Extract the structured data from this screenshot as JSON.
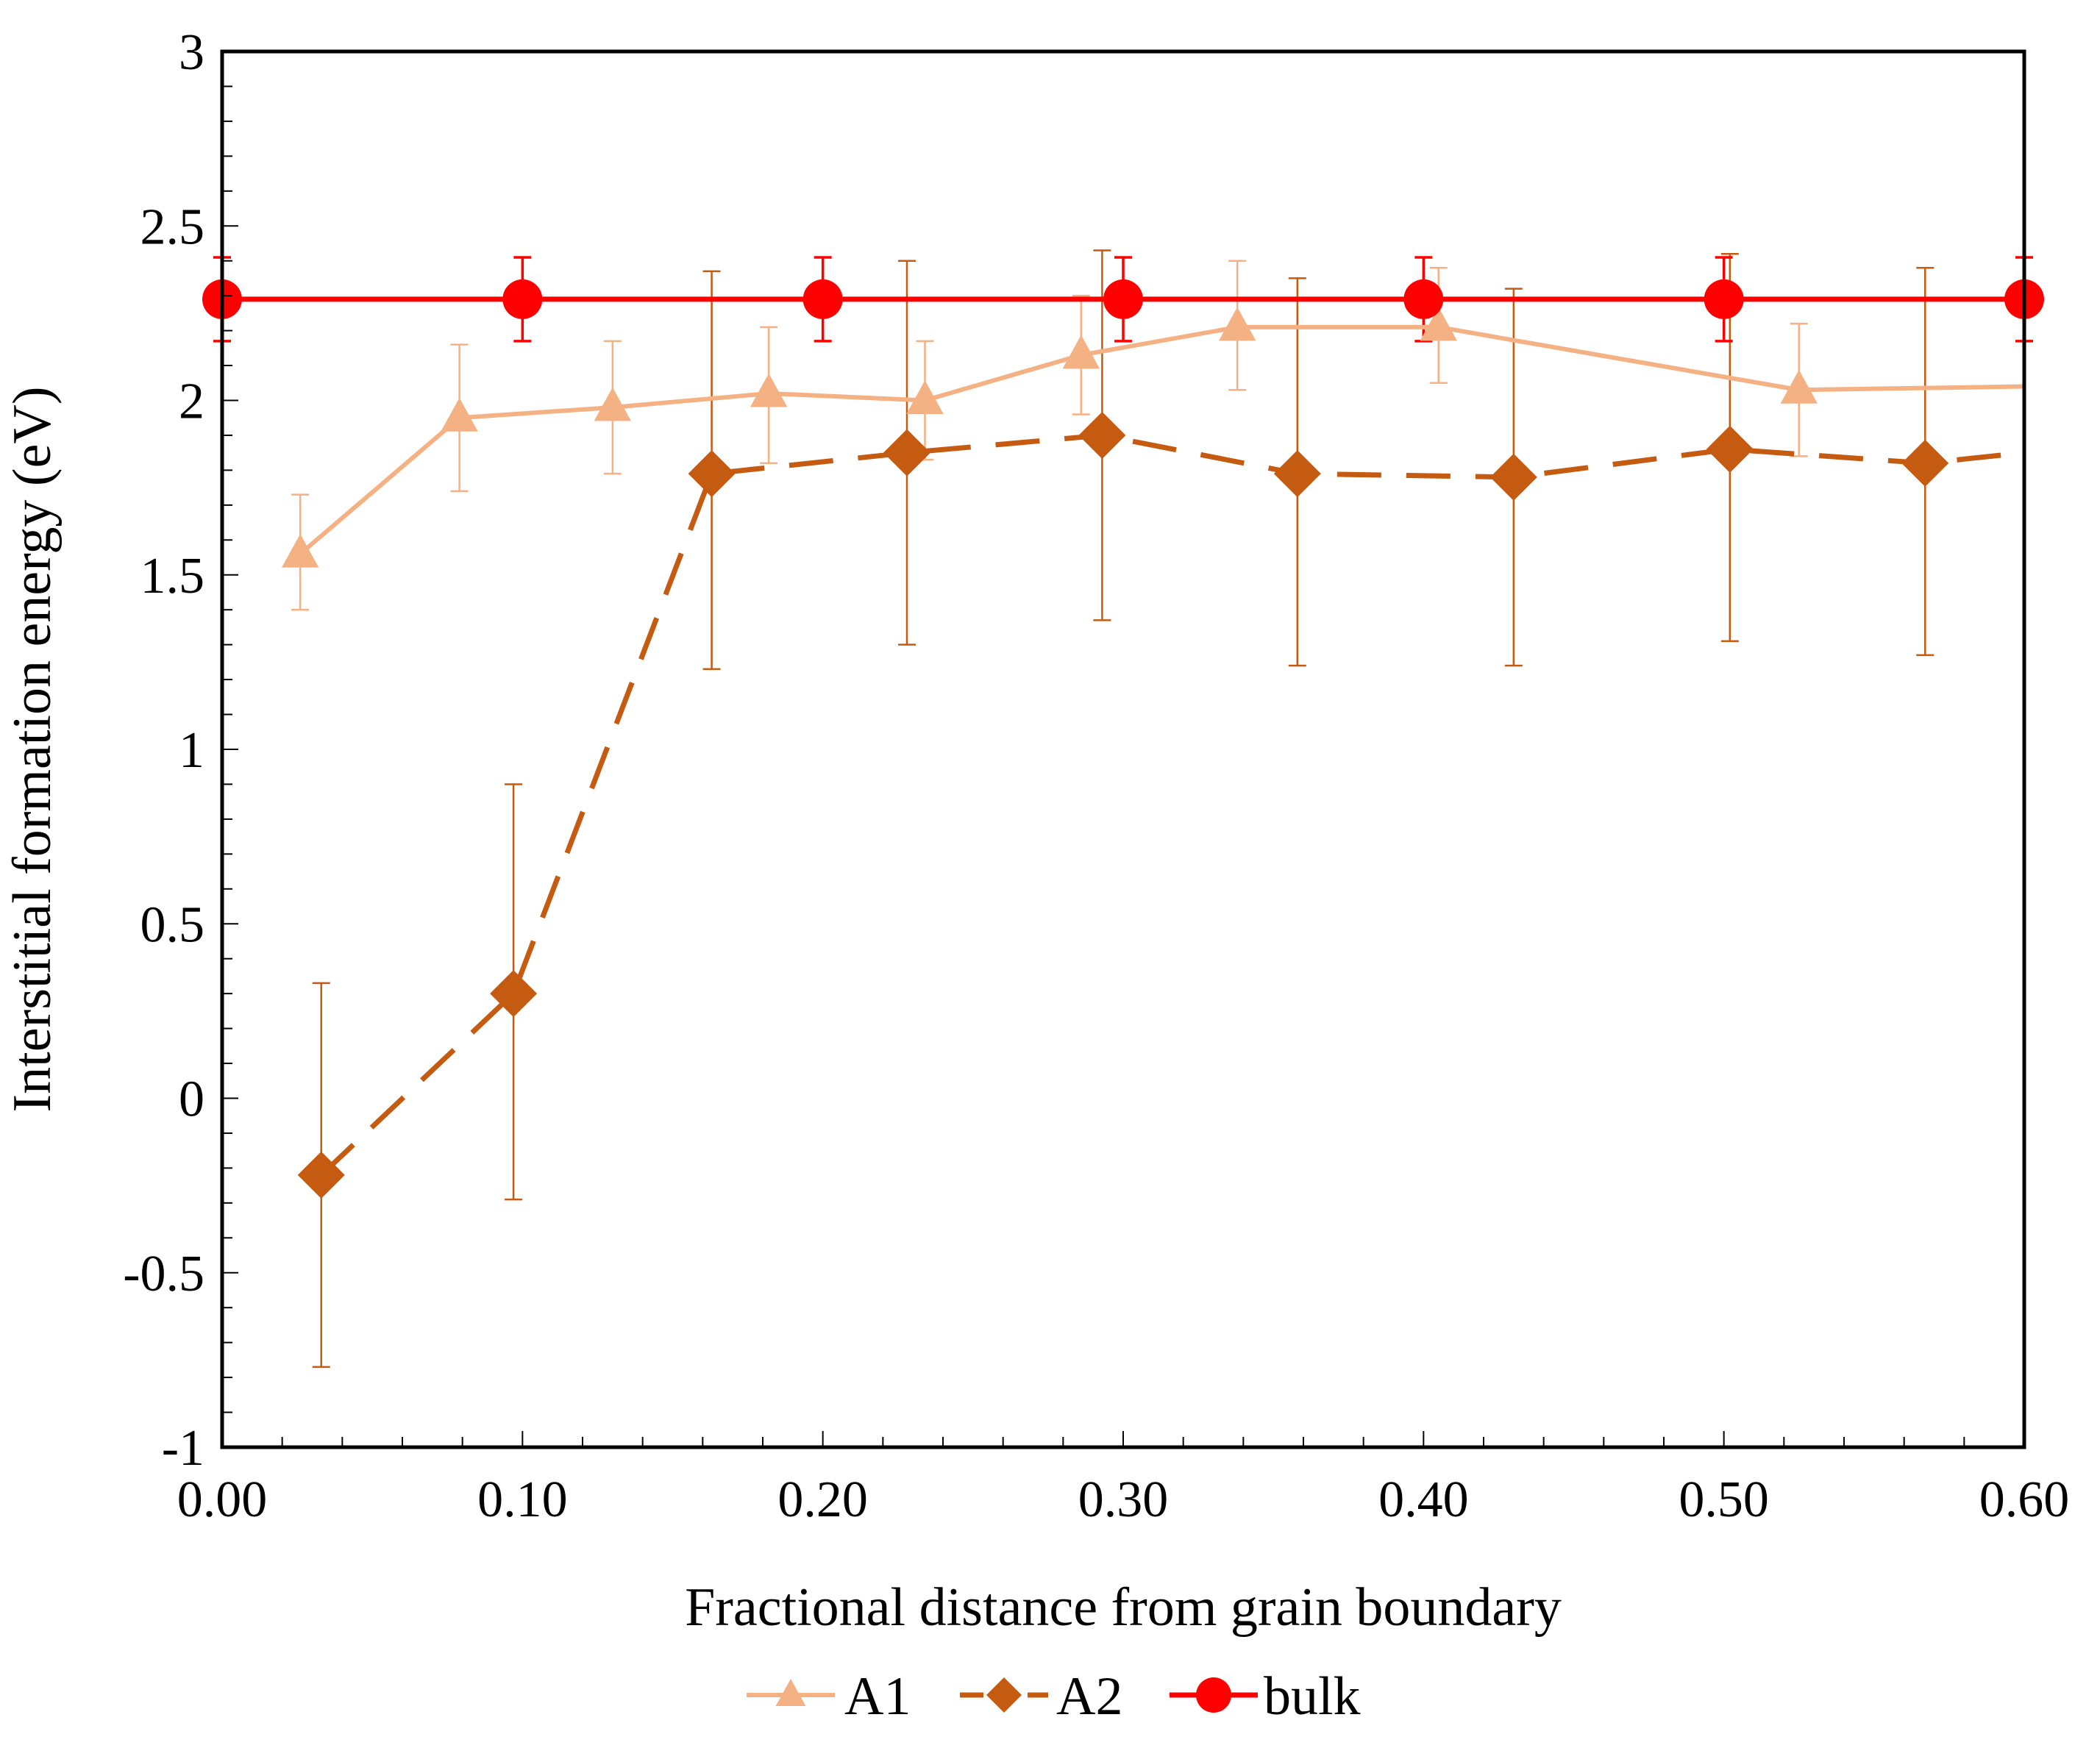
{
  "chart_data": {
    "type": "line",
    "xlabel": "Fractional distance from grain boundary",
    "ylabel": "Interstitial formation energy (eV)",
    "xlim": [
      0,
      0.6
    ],
    "ylim": [
      -1,
      3
    ],
    "xticks": [
      0,
      0.1,
      0.2,
      0.3,
      0.4,
      0.5,
      0.6
    ],
    "xtick_labels": [
      "0.00",
      "0.10",
      "0.20",
      "0.30",
      "0.40",
      "0.50",
      "0.60"
    ],
    "yticks": [
      -1,
      -0.5,
      0,
      0.5,
      1,
      1.5,
      2,
      2.5,
      3
    ],
    "ytick_labels": [
      "-1",
      "-0.5",
      "0",
      "0.5",
      "1",
      "1.5",
      "2",
      "2.5",
      "3"
    ],
    "grid": false,
    "legend": "bottom",
    "series": [
      {
        "name": "A1",
        "color": "#F4B183",
        "marker": "triangle",
        "line": "solid",
        "x": [
          0.026,
          0.079,
          0.13,
          0.182,
          0.234,
          0.286,
          0.338,
          0.405,
          0.525,
          0.6
        ],
        "y": [
          1.56,
          1.95,
          1.98,
          2.02,
          2.0,
          2.13,
          2.21,
          2.21,
          2.03,
          2.04
        ],
        "err_low": [
          1.4,
          1.74,
          1.79,
          1.82,
          1.83,
          1.96,
          2.03,
          2.05,
          1.84,
          null
        ],
        "err_high": [
          1.73,
          2.16,
          2.17,
          2.21,
          2.17,
          2.3,
          2.4,
          2.38,
          2.22,
          null
        ]
      },
      {
        "name": "A2",
        "color": "#C55A11",
        "marker": "diamond",
        "line": "dashed",
        "x": [
          0.033,
          0.097,
          0.163,
          0.228,
          0.293,
          0.358,
          0.43,
          0.502,
          0.567,
          0.6
        ],
        "y": [
          -0.22,
          0.3,
          1.79,
          1.85,
          1.9,
          1.79,
          1.78,
          1.86,
          1.82,
          1.85
        ],
        "err_low": [
          -0.77,
          -0.29,
          1.23,
          1.3,
          1.37,
          1.24,
          1.24,
          1.31,
          1.27,
          null
        ],
        "err_high": [
          0.33,
          0.9,
          2.37,
          2.4,
          2.43,
          2.35,
          2.32,
          2.42,
          2.38,
          null
        ]
      },
      {
        "name": "bulk",
        "color": "#FF0000",
        "marker": "circle",
        "line": "solid",
        "x": [
          0.0,
          0.1,
          0.2,
          0.3,
          0.4,
          0.5,
          0.6
        ],
        "y": [
          2.29,
          2.29,
          2.29,
          2.29,
          2.29,
          2.29,
          2.29
        ],
        "err_low": [
          2.17,
          2.17,
          2.17,
          2.17,
          2.17,
          2.17,
          2.17
        ],
        "err_high": [
          2.41,
          2.41,
          2.41,
          2.41,
          2.41,
          2.41,
          2.41
        ]
      }
    ]
  }
}
